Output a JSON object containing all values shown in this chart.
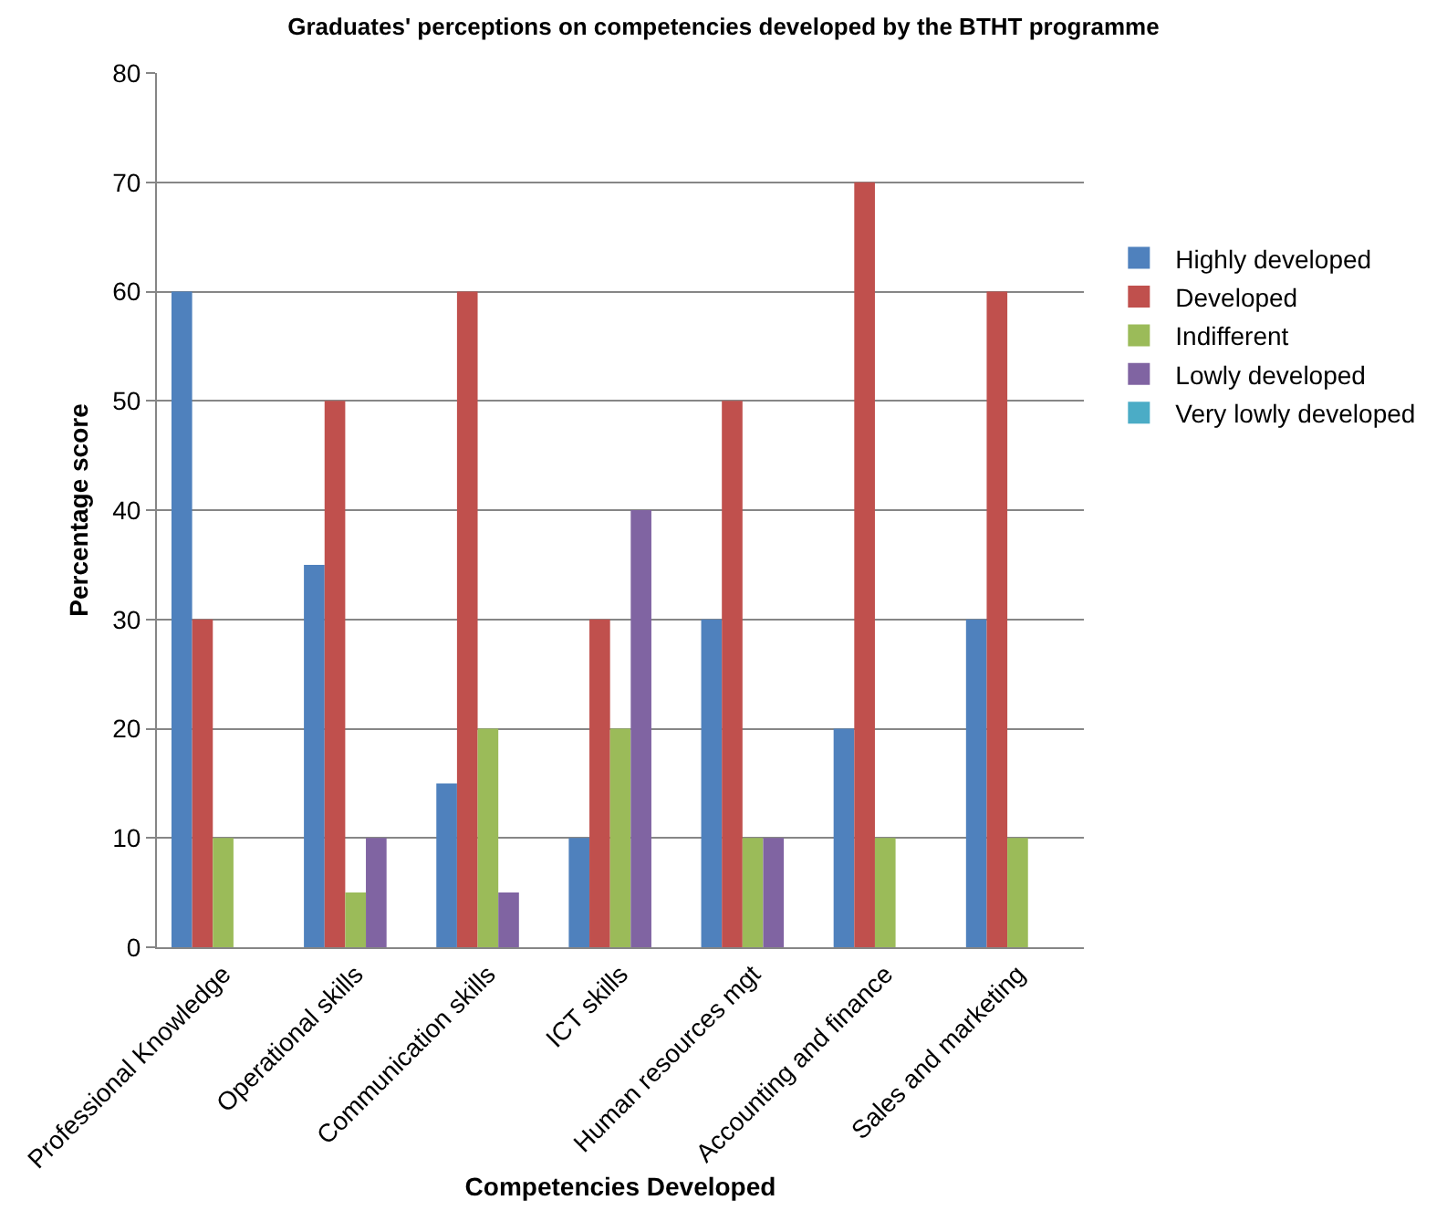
{
  "chart_data": {
    "type": "bar",
    "title": "Graduates' perceptions on competencies developed by the BTHT programme",
    "xlabel": "Competencies Developed",
    "ylabel": "Percentage score",
    "categories": [
      "Professional Knowledge",
      "Operational skills",
      "Communication skills",
      "ICT skills",
      "Human resources mgt",
      "Accounting and finance",
      "Sales and marketing"
    ],
    "series": [
      {
        "name": "Highly developed",
        "color": "#4f81bd",
        "values": [
          60,
          35,
          15,
          10,
          30,
          20,
          30
        ]
      },
      {
        "name": "Developed",
        "color": "#c0504d",
        "values": [
          30,
          50,
          60,
          30,
          50,
          70,
          60
        ]
      },
      {
        "name": "Indifferent",
        "color": "#9bbb59",
        "values": [
          10,
          5,
          20,
          20,
          10,
          10,
          10
        ]
      },
      {
        "name": "Lowly developed",
        "color": "#8064a2",
        "values": [
          null,
          10,
          5,
          40,
          10,
          null,
          null
        ]
      },
      {
        "name": "Very lowly developed",
        "color": "#4bacc6",
        "values": [
          null,
          null,
          null,
          null,
          null,
          null,
          null
        ]
      }
    ],
    "ylim": [
      0,
      80
    ],
    "yticks": [
      0,
      10,
      20,
      30,
      40,
      50,
      60,
      70,
      80
    ],
    "grid": "y",
    "legend": "right"
  }
}
